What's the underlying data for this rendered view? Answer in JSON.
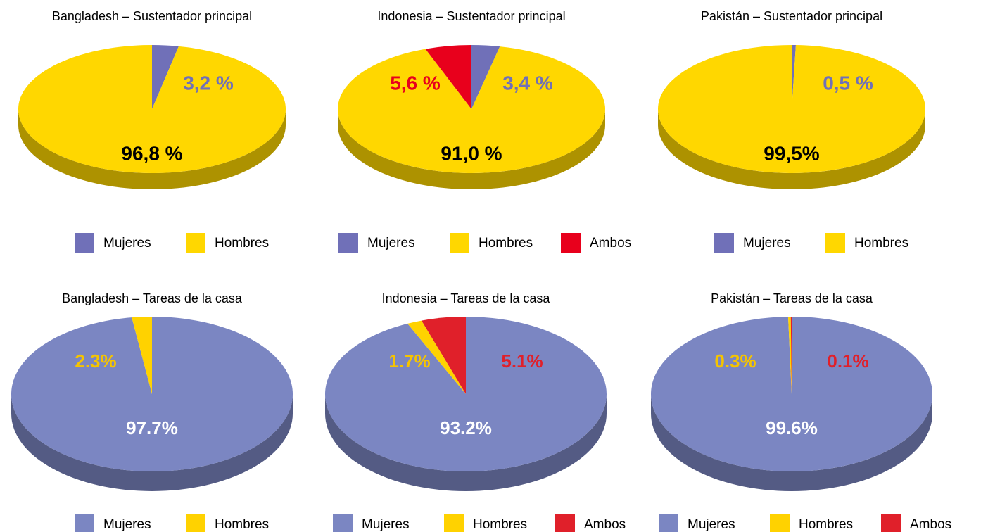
{
  "chart_data": [
    {
      "type": "pie",
      "title": "Bangladesh – Sustentador principal",
      "categories": [
        "Mujeres",
        "Hombres"
      ],
      "values": [
        3.2,
        96.8
      ],
      "value_labels": [
        "3,2 %",
        "96,8 %"
      ],
      "colors": [
        "#7070b8",
        "#ffd700"
      ],
      "label_colors": [
        "#7070b8",
        "#000000"
      ]
    },
    {
      "type": "pie",
      "title": "Indonesia – Sustentador principal",
      "categories": [
        "Mujeres",
        "Hombres",
        "Ambos"
      ],
      "values": [
        3.4,
        91,
        5.6
      ],
      "value_labels": [
        "3,4 %",
        "91,0 %",
        "5,6 %"
      ],
      "colors": [
        "#7070b8",
        "#ffd700",
        "#e8001c"
      ],
      "label_colors": [
        "#7070b8",
        "#000000",
        "#e8001c"
      ]
    },
    {
      "type": "pie",
      "title": "Pakistán – Sustentador principal",
      "categories": [
        "Mujeres",
        "Hombres"
      ],
      "values": [
        0.5,
        99.5
      ],
      "value_labels": [
        "0,5 %",
        "99,5%"
      ],
      "colors": [
        "#7070b8",
        "#ffd700"
      ],
      "label_colors": [
        "#7070b8",
        "#000000"
      ]
    },
    {
      "type": "pie",
      "title": "Bangladesh – Tareas de la casa",
      "categories": [
        "Mujeres",
        "Hombres"
      ],
      "values": [
        97.7,
        2.3
      ],
      "value_labels": [
        "97.7%",
        "2.3%"
      ],
      "colors": [
        "#7b86c2",
        "#ffd200"
      ],
      "label_colors": [
        "#ffffff",
        "#f5c400"
      ]
    },
    {
      "type": "pie",
      "title": "Indonesia – Tareas de la casa",
      "categories": [
        "Mujeres",
        "Hombres",
        "Ambos"
      ],
      "values": [
        93.2,
        1.7,
        5.1
      ],
      "value_labels": [
        "93.2%",
        "1.7%",
        "5.1%"
      ],
      "colors": [
        "#7b86c2",
        "#ffd200",
        "#e0202a"
      ],
      "label_colors": [
        "#ffffff",
        "#f5c400",
        "#e0202a"
      ]
    },
    {
      "type": "pie",
      "title": "Pakistán – Tareas de la casa",
      "categories": [
        "Mujeres",
        "Hombres",
        "Ambos"
      ],
      "values": [
        99.6,
        0.3,
        0.1
      ],
      "value_labels": [
        "99.6%",
        "0.3%",
        "0.1%"
      ],
      "colors": [
        "#7b86c2",
        "#ffd200",
        "#e0202a"
      ],
      "label_colors": [
        "#ffffff",
        "#f5c400",
        "#e0202a"
      ]
    }
  ]
}
